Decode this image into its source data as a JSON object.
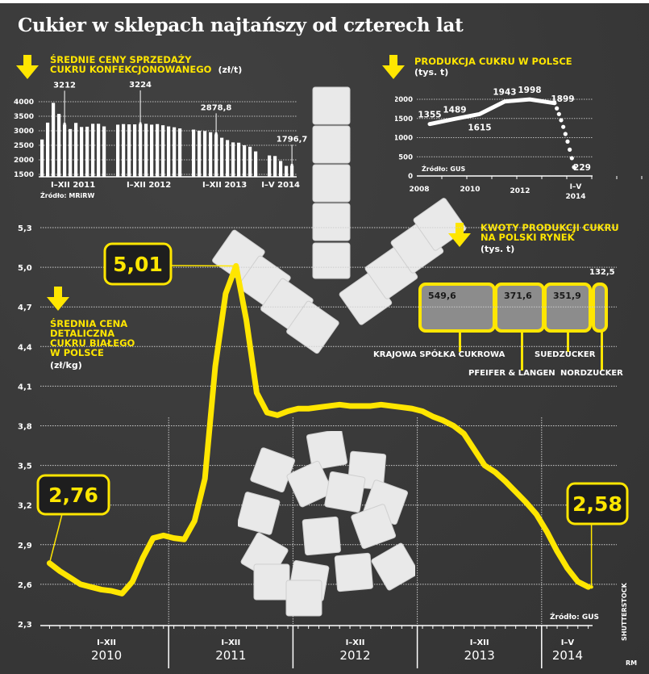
{
  "title": "Cukier w sklepach najtańszy od czterech lat",
  "colors": {
    "background": "#3a3a3a",
    "accent": "#ffe600",
    "text": "#ffffff",
    "quota_box": "#8c8c8c"
  },
  "icons": {
    "section_arrow": "down-arrow-icon"
  },
  "credits": {
    "photo": "SHUTTERSTOCK",
    "author": "RM"
  },
  "chart_data": [
    {
      "id": "wholesale",
      "type": "bar",
      "title_lines": [
        "ŚREDNIE CENY SPRZEDAŻY",
        "CUKRU KONFEKCJONOWANEGO"
      ],
      "unit": "(zł/t)",
      "source": "Źródło: MRiRW",
      "ylim": [
        1500,
        4000
      ],
      "yticks": [
        4000,
        3500,
        3000,
        2500,
        2000,
        1500
      ],
      "grid": true,
      "groups": [
        {
          "label": "I–XII 2011",
          "values": [
            2700,
            3280,
            3960,
            3580,
            3212,
            3060,
            3270,
            3130,
            3140,
            3240,
            3240,
            3150
          ]
        },
        {
          "label": "I–XII 2012",
          "values": [
            3210,
            3230,
            3220,
            3220,
            3224,
            3240,
            3210,
            3230,
            3190,
            3150,
            3120,
            3080
          ]
        },
        {
          "label": "I–XII 2013",
          "values": [
            3040,
            3000,
            2990,
            2950,
            2878.8,
            2760,
            2680,
            2600,
            2590,
            2500,
            2450,
            2290
          ]
        },
        {
          "label": "I–V 2014",
          "values": [
            2150,
            2130,
            1960,
            1790,
            1796.7
          ]
        }
      ],
      "annotations": [
        {
          "group": 0,
          "index": 4,
          "label": "3212"
        },
        {
          "group": 1,
          "index": 4,
          "label": "3224"
        },
        {
          "group": 2,
          "index": 4,
          "label": "2878,8"
        },
        {
          "group": 3,
          "index": 4,
          "label": "1796,7"
        }
      ]
    },
    {
      "id": "production",
      "type": "line",
      "title_lines": [
        "PRODUKCJA CUKRU W POLSCE"
      ],
      "unit": "(tys. t)",
      "source": "Źródło: GUS",
      "ylim": [
        0,
        2000
      ],
      "yticks": [
        2000,
        1500,
        1000,
        500,
        0
      ],
      "grid": true,
      "xticks": [
        "2008",
        "2010",
        "2012",
        "I–V\n2014"
      ],
      "x": [
        "2008",
        "2009",
        "2010",
        "2011",
        "2012",
        "2013",
        "I–V 2014"
      ],
      "values": [
        1355,
        1489,
        1615,
        1943,
        1998,
        1899,
        229
      ],
      "labels": [
        "1355",
        "1489",
        "1615",
        "1943",
        "1998",
        "1899",
        "229"
      ],
      "last_segment_style": "dotted"
    },
    {
      "id": "quotas",
      "type": "bar",
      "orientation": "stacked-horizontal",
      "title_lines": [
        "KWOTY PRODUKCJI CUKRU",
        "NA POLSKI RYNEK"
      ],
      "unit": "(tys. t)",
      "categories": [
        "KRAJOWA SPÓŁKA CUKROWA",
        "PFEIFER & LANGEN",
        "SUEDZUCKER",
        "NORDZUCKER"
      ],
      "values": [
        549.6,
        371.6,
        351.9,
        132.5
      ],
      "labels": [
        "549,6",
        "371,6",
        "351,9",
        "132,5"
      ]
    },
    {
      "id": "retail",
      "type": "line",
      "title_lines": [
        "ŚREDNIA CENA",
        "DETALICZNA",
        "CUKRU BIAŁEGO",
        "W POLSCE"
      ],
      "unit": "(zł/kg)",
      "source": "Źródło: GUS",
      "ylim": [
        2.3,
        5.3
      ],
      "yticks": [
        "5,3",
        "5,0",
        "4,7",
        "4,4",
        "4,1",
        "3,8",
        "3,5",
        "3,2",
        "2,9",
        "2,6",
        "2,3"
      ],
      "ytick_values": [
        5.3,
        5.0,
        4.7,
        4.4,
        4.1,
        3.8,
        3.5,
        3.2,
        2.9,
        2.6,
        2.3
      ],
      "grid": true,
      "periods": [
        {
          "top": "I–XII",
          "bottom": "2010",
          "months": 12
        },
        {
          "top": "I–XII",
          "bottom": "2011",
          "months": 12
        },
        {
          "top": "I–XII",
          "bottom": "2012",
          "months": 12
        },
        {
          "top": "I–XII",
          "bottom": "2013",
          "months": 12
        },
        {
          "top": "I–V",
          "bottom": "2014",
          "months": 5
        }
      ],
      "values": [
        2.76,
        2.7,
        2.65,
        2.6,
        2.58,
        2.56,
        2.55,
        2.53,
        2.62,
        2.8,
        2.95,
        2.97,
        2.95,
        2.94,
        3.08,
        3.4,
        4.25,
        4.8,
        5.01,
        4.6,
        4.05,
        3.9,
        3.88,
        3.91,
        3.93,
        3.93,
        3.94,
        3.95,
        3.96,
        3.95,
        3.95,
        3.95,
        3.96,
        3.95,
        3.94,
        3.93,
        3.91,
        3.87,
        3.84,
        3.8,
        3.74,
        3.62,
        3.5,
        3.45,
        3.38,
        3.3,
        3.22,
        3.13,
        3.0,
        2.85,
        2.72,
        2.62,
        2.58
      ],
      "callouts": [
        {
          "index": 0,
          "label": "2,76"
        },
        {
          "index": 18,
          "label": "5,01"
        },
        {
          "index": 52,
          "label": "2,58"
        }
      ]
    }
  ]
}
